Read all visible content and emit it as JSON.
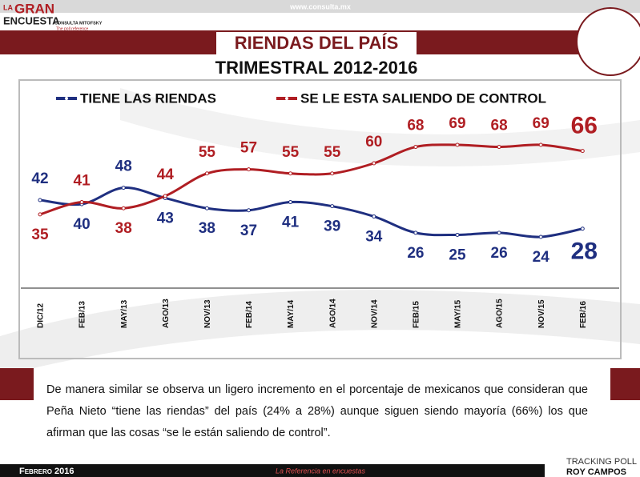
{
  "header": {
    "logo_top": "LA",
    "logo_main": "GRAN",
    "logo_sub": "ENCUESTA",
    "brand": "CONSULTA MITOFSKY",
    "tagline": "The poll reference",
    "url": "www.consulta.mx"
  },
  "chart_data": {
    "type": "line",
    "title": "RIENDAS DEL PAÍS",
    "subtitle": "TRIMESTRAL 2012-2016",
    "categories": [
      "DIC/12",
      "FEB/13",
      "MAY/13",
      "AGO/13",
      "NOV/13",
      "FEB/14",
      "MAY/14",
      "AGO/14",
      "NOV/14",
      "FEB/15",
      "MAY/15",
      "AGO/15",
      "NOV/15",
      "FEB/16"
    ],
    "series": [
      {
        "name": "TIENE LAS RIENDAS",
        "color": "#1f2f80",
        "values": [
          42,
          40,
          48,
          43,
          38,
          37,
          41,
          39,
          34,
          26,
          25,
          26,
          24,
          28
        ]
      },
      {
        "name": "SE LE ESTA SALIENDO DE CONTROL",
        "color": "#b01e23",
        "values": [
          35,
          41,
          38,
          44,
          55,
          57,
          55,
          55,
          60,
          68,
          69,
          68,
          69,
          66
        ]
      }
    ],
    "legend": "top"
  },
  "text": "De manera similar se observa un ligero incremento en el porcentaje de mexicanos que consideran que Peña Nieto “tiene las riendas” del país (24% a 28%) aunque siguen siendo mayoría (66%) los que afirman que las cosas “se le están saliendo de control”.",
  "footer": {
    "date": "Febrero 2016",
    "slogan": "La Referencia en encuestas",
    "tracking": "TRACKING POLL",
    "author": "ROY CAMPOS"
  }
}
